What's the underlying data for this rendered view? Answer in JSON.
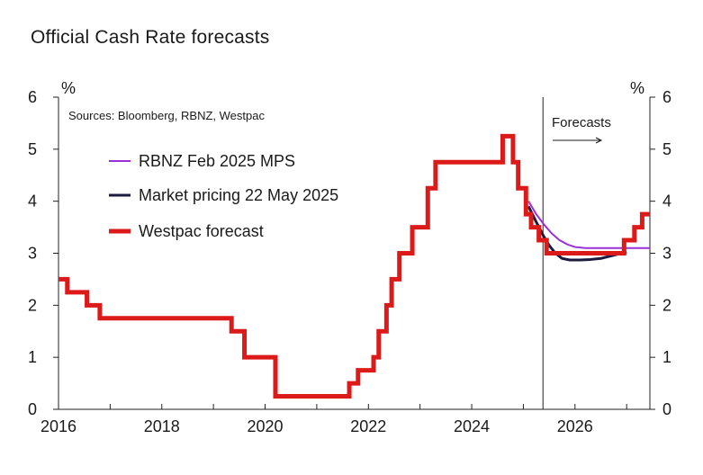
{
  "chart_data": {
    "type": "line",
    "title": "Official Cash Rate forecasts",
    "source_note": "Sources: Bloomberg, RBNZ, Westpac",
    "annotation": "Forecasts",
    "forecast_start_x": 2025.38,
    "xlim": [
      2016,
      2027.45
    ],
    "ylim": [
      0,
      6
    ],
    "x_ticks": [
      {
        "value": 2016,
        "label": "2016"
      },
      {
        "value": 2018,
        "label": "2018"
      },
      {
        "value": 2020,
        "label": "2020"
      },
      {
        "value": 2022,
        "label": "2022"
      },
      {
        "value": 2024,
        "label": "2024"
      },
      {
        "value": 2026,
        "label": "2026"
      }
    ],
    "y_ticks": [
      {
        "value": 0,
        "label": "0"
      },
      {
        "value": 1,
        "label": "1"
      },
      {
        "value": 2,
        "label": "2"
      },
      {
        "value": 3,
        "label": "3"
      },
      {
        "value": 4,
        "label": "4"
      },
      {
        "value": 5,
        "label": "5"
      },
      {
        "value": 6,
        "label": "6"
      }
    ],
    "ylabel_left": "%",
    "ylabel_right": "%",
    "series": [
      {
        "name": "RBNZ Feb 2025 MPS",
        "color": "#9b30d9",
        "style": "line",
        "x": [
          2025.1,
          2025.25,
          2025.4,
          2025.55,
          2025.7,
          2025.85,
          2026.0,
          2026.2,
          2026.5,
          2026.8,
          2027.1,
          2027.45
        ],
        "y": [
          4.0,
          3.75,
          3.55,
          3.38,
          3.25,
          3.17,
          3.12,
          3.1,
          3.1,
          3.1,
          3.1,
          3.1
        ]
      },
      {
        "name": "Market pricing 22 May 2025",
        "color": "#1c1a3e",
        "style": "line",
        "x": [
          2025.1,
          2025.25,
          2025.38,
          2025.5,
          2025.62,
          2025.75,
          2025.9,
          2026.1,
          2026.3,
          2026.5,
          2026.7,
          2026.9,
          2027.0
        ],
        "y": [
          3.9,
          3.6,
          3.35,
          3.15,
          3.0,
          2.9,
          2.87,
          2.87,
          2.88,
          2.9,
          2.95,
          3.0,
          3.02
        ]
      },
      {
        "name": "Westpac forecast",
        "color": "#dd1a1a",
        "style": "step",
        "x": [
          2016.0,
          2016.17,
          2016.55,
          2016.8,
          2019.35,
          2019.6,
          2020.2,
          2021.63,
          2021.8,
          2022.1,
          2022.2,
          2022.35,
          2022.45,
          2022.6,
          2022.85,
          2023.15,
          2023.3,
          2024.6,
          2024.8,
          2024.9,
          2025.05,
          2025.15,
          2025.3,
          2025.45,
          2026.95,
          2027.15,
          2027.3,
          2027.45
        ],
        "y": [
          2.5,
          2.25,
          2.0,
          1.75,
          1.5,
          1.0,
          0.25,
          0.5,
          0.75,
          1.0,
          1.5,
          2.0,
          2.5,
          3.0,
          3.5,
          4.25,
          4.75,
          5.25,
          4.75,
          4.25,
          3.75,
          3.5,
          3.25,
          3.0,
          3.25,
          3.5,
          3.75,
          3.75
        ]
      }
    ]
  }
}
